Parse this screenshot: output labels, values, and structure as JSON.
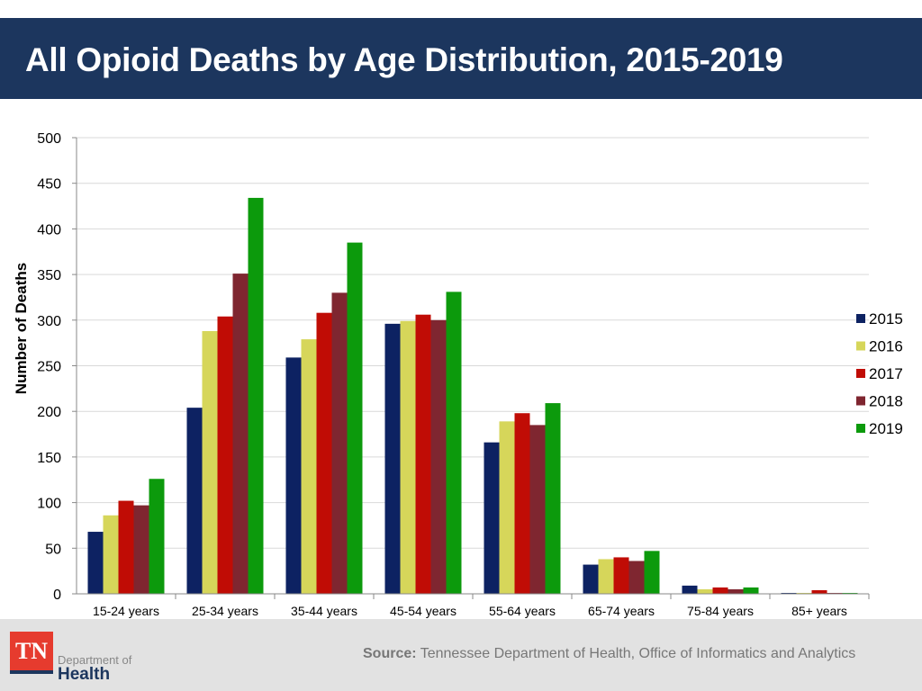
{
  "header": {
    "title": "All Opioid Deaths by Age Distribution, 2015-2019"
  },
  "chart_data": {
    "type": "bar",
    "title": "",
    "xlabel": "",
    "ylabel": "Number of Deaths",
    "ylim": [
      0,
      500
    ],
    "yticks": [
      0,
      50,
      100,
      150,
      200,
      250,
      300,
      350,
      400,
      450,
      500
    ],
    "grid": true,
    "legend": "right",
    "categories": [
      "15-24 years",
      "25-34 years",
      "35-44 years",
      "45-54 years",
      "55-64 years",
      "65-74 years",
      "75-84 years",
      "85+ years"
    ],
    "series": [
      {
        "name": "2015",
        "color": "#0d2262",
        "values": [
          68,
          204,
          259,
          296,
          166,
          32,
          9,
          1
        ]
      },
      {
        "name": "2016",
        "color": "#d6d65a",
        "values": [
          86,
          288,
          279,
          299,
          189,
          38,
          5,
          1
        ]
      },
      {
        "name": "2017",
        "color": "#c00c05",
        "values": [
          102,
          304,
          308,
          306,
          198,
          40,
          7,
          4
        ]
      },
      {
        "name": "2018",
        "color": "#7f2630",
        "values": [
          97,
          351,
          330,
          300,
          185,
          36,
          5,
          1
        ]
      },
      {
        "name": "2019",
        "color": "#0c9a0c",
        "values": [
          126,
          434,
          385,
          331,
          209,
          47,
          7,
          1
        ]
      }
    ]
  },
  "footer": {
    "source_label": "Source:",
    "source_text": "Tennessee Department of Health, Office of Informatics and Analytics",
    "logo_text": "TN",
    "logo_dept": "Department of",
    "logo_health": "Health"
  }
}
